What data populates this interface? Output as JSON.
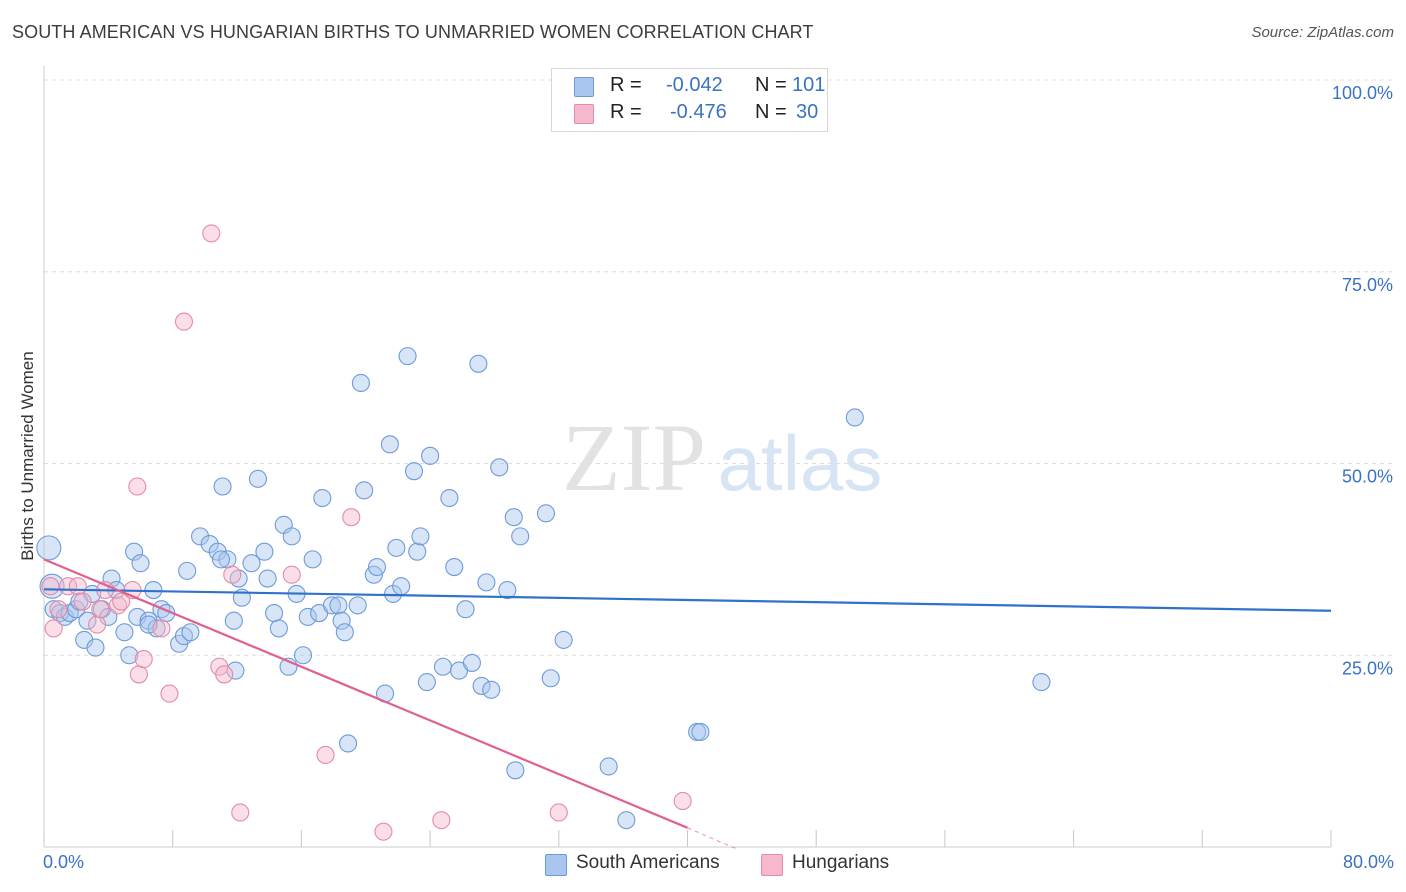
{
  "title": "SOUTH AMERICAN VS HUNGARIAN BIRTHS TO UNMARRIED WOMEN CORRELATION CHART",
  "source": "Source: ZipAtlas.com",
  "watermark": {
    "zip": "ZIP",
    "atlas": "atlas"
  },
  "legend": {
    "rows": [
      {
        "r_label": "R =",
        "r_value": "-0.042",
        "n_label": "N =",
        "n_value": "101",
        "color": "#a9c6ee"
      },
      {
        "r_label": "R =",
        "r_value": "-0.476",
        "n_label": "N =",
        "n_value": "30",
        "color": "#f5b8cc"
      }
    ]
  },
  "bottom_legend": [
    {
      "label": "South Americans",
      "color": "#a9c6ee"
    },
    {
      "label": "Hungarians",
      "color": "#f5b8cc"
    }
  ],
  "colors": {
    "blue_fill": "#a9c6ee",
    "blue_stroke": "#6d9bd8",
    "blue_line": "#2f72c8",
    "pink_fill": "#f5b8cc",
    "pink_stroke": "#e58aa8",
    "pink_line": "#e0608e",
    "grid": "#dddddd",
    "tick_label": "#3a72c4"
  },
  "chart_data": {
    "type": "scatter",
    "title": "SOUTH AMERICAN VS HUNGARIAN BIRTHS TO UNMARRIED WOMEN CORRELATION CHART",
    "xlabel": "",
    "ylabel": "Births to Unmarried Women",
    "xlim": [
      0,
      80
    ],
    "ylim": [
      0,
      100
    ],
    "x_tick_labels": [
      "0.0%",
      "80.0%"
    ],
    "y_ticks": [
      25,
      50,
      75,
      100
    ],
    "y_tick_labels": [
      "25.0%",
      "50.0%",
      "75.0%",
      "100.0%"
    ],
    "grid": true,
    "legend_position": "top-center",
    "series": [
      {
        "name": "South Americans",
        "r": -0.042,
        "n": 101,
        "trend": {
          "x": [
            0,
            80
          ],
          "y": [
            33.6,
            30.8
          ]
        },
        "points": [
          [
            0.3,
            39
          ],
          [
            0.5,
            34
          ],
          [
            0.6,
            31
          ],
          [
            1,
            30.5
          ],
          [
            1.3,
            30
          ],
          [
            1.6,
            30.5
          ],
          [
            2,
            31
          ],
          [
            2.2,
            32
          ],
          [
            2.5,
            27
          ],
          [
            2.7,
            29.5
          ],
          [
            3,
            33
          ],
          [
            3.2,
            26
          ],
          [
            3.6,
            31
          ],
          [
            4,
            30
          ],
          [
            4.2,
            35
          ],
          [
            4.5,
            33.5
          ],
          [
            5,
            28
          ],
          [
            5.3,
            25
          ],
          [
            5.6,
            38.5
          ],
          [
            5.8,
            30
          ],
          [
            6,
            37
          ],
          [
            6.5,
            29.5
          ],
          [
            6.8,
            33.5
          ],
          [
            7,
            28.5
          ],
          [
            7.3,
            31
          ],
          [
            7.6,
            30.5
          ],
          [
            8.4,
            26.5
          ],
          [
            8.7,
            27.5
          ],
          [
            8.9,
            36
          ],
          [
            9.1,
            28
          ],
          [
            9.7,
            40.5
          ],
          [
            10.3,
            39.5
          ],
          [
            10.8,
            38.5
          ],
          [
            11.1,
            47
          ],
          [
            11.4,
            37.5
          ],
          [
            11.8,
            29.5
          ],
          [
            11.9,
            23
          ],
          [
            12.1,
            35
          ],
          [
            12.3,
            32.5
          ],
          [
            12.9,
            37
          ],
          [
            13.3,
            48
          ],
          [
            13.7,
            38.5
          ],
          [
            13.9,
            35
          ],
          [
            14.3,
            30.5
          ],
          [
            14.6,
            28.5
          ],
          [
            14.9,
            42
          ],
          [
            15.2,
            23.5
          ],
          [
            15.4,
            40.5
          ],
          [
            15.7,
            33
          ],
          [
            16.1,
            25
          ],
          [
            16.4,
            30
          ],
          [
            16.7,
            37.5
          ],
          [
            17.1,
            30.5
          ],
          [
            17.3,
            45.5
          ],
          [
            17.9,
            31.5
          ],
          [
            18.3,
            31.5
          ],
          [
            18.5,
            29.5
          ],
          [
            18.7,
            28
          ],
          [
            19.5,
            31.5
          ],
          [
            19.7,
            60.5
          ],
          [
            19.9,
            46.5
          ],
          [
            20.5,
            35.5
          ],
          [
            20.7,
            36.5
          ],
          [
            21.2,
            20
          ],
          [
            21.5,
            52.5
          ],
          [
            21.7,
            33
          ],
          [
            21.9,
            39
          ],
          [
            22.2,
            34
          ],
          [
            22.6,
            64
          ],
          [
            23,
            49
          ],
          [
            23.2,
            38.5
          ],
          [
            23.4,
            40.5
          ],
          [
            23.8,
            21.5
          ],
          [
            24,
            51
          ],
          [
            24.8,
            23.5
          ],
          [
            25.2,
            45.5
          ],
          [
            25.5,
            36.5
          ],
          [
            25.8,
            23
          ],
          [
            26.2,
            31
          ],
          [
            26.6,
            24
          ],
          [
            27,
            63
          ],
          [
            27.2,
            21
          ],
          [
            27.5,
            34.5
          ],
          [
            27.8,
            20.5
          ],
          [
            28.3,
            49.5
          ],
          [
            28.8,
            33.5
          ],
          [
            29.2,
            43
          ],
          [
            29.6,
            40.5
          ],
          [
            31.2,
            43.5
          ],
          [
            31.5,
            22
          ],
          [
            32.3,
            27
          ],
          [
            29.3,
            10
          ],
          [
            35.1,
            10.5
          ],
          [
            36.2,
            3.5
          ],
          [
            40.6,
            15
          ],
          [
            40.8,
            15
          ],
          [
            50.4,
            56
          ],
          [
            62,
            21.5
          ],
          [
            6.5,
            29
          ],
          [
            18.9,
            13.5
          ],
          [
            11,
            37.5
          ]
        ]
      },
      {
        "name": "Hungarians",
        "r": -0.476,
        "n": 30,
        "trend": {
          "x": [
            0,
            40
          ],
          "y": [
            37.5,
            2.5
          ]
        },
        "trend_dashed": {
          "x": [
            40,
            43
          ],
          "y": [
            2.5,
            -0.2
          ]
        },
        "points": [
          [
            0.4,
            34
          ],
          [
            0.6,
            28.5
          ],
          [
            0.9,
            31
          ],
          [
            1.5,
            34
          ],
          [
            2.1,
            34
          ],
          [
            2.4,
            32
          ],
          [
            3.3,
            29
          ],
          [
            3.5,
            31
          ],
          [
            3.8,
            33.5
          ],
          [
            4.6,
            31.5
          ],
          [
            4.8,
            32
          ],
          [
            5.5,
            33.5
          ],
          [
            5.9,
            22.5
          ],
          [
            6.2,
            24.5
          ],
          [
            5.8,
            47
          ],
          [
            7.8,
            20
          ],
          [
            8.7,
            68.5
          ],
          [
            10.4,
            80
          ],
          [
            10.9,
            23.5
          ],
          [
            11.2,
            22.5
          ],
          [
            11.7,
            35.5
          ],
          [
            12.2,
            4.5
          ],
          [
            15.4,
            35.5
          ],
          [
            17.5,
            12
          ],
          [
            19.1,
            43
          ],
          [
            21.1,
            2
          ],
          [
            24.7,
            3.5
          ],
          [
            32,
            4.5
          ],
          [
            39.7,
            6
          ],
          [
            7.3,
            28.5
          ]
        ]
      }
    ]
  }
}
